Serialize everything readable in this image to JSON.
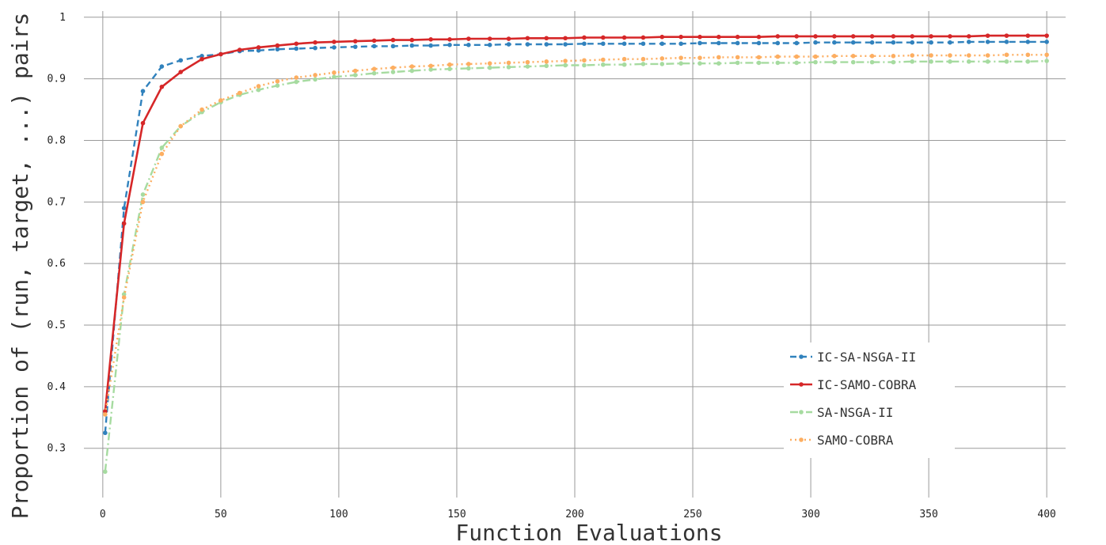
{
  "chart_data": {
    "type": "line",
    "title": "",
    "xlabel": "Function Evaluations",
    "ylabel": "Proportion of (run, target, ...) pairs",
    "xlim": [
      -8,
      408
    ],
    "ylim": [
      0.22,
      1.01
    ],
    "x_ticks": [
      0,
      50,
      100,
      150,
      200,
      250,
      300,
      350,
      400
    ],
    "y_ticks": [
      0.3,
      0.4,
      0.5,
      0.6,
      0.7,
      0.8,
      0.9,
      1
    ],
    "grid": true,
    "legend_position": "lower-right",
    "x": [
      1,
      9,
      17,
      25,
      33,
      42,
      50,
      58,
      66,
      74,
      82,
      90,
      98,
      107,
      115,
      123,
      131,
      139,
      147,
      155,
      164,
      172,
      180,
      188,
      196,
      204,
      212,
      221,
      229,
      237,
      245,
      253,
      261,
      269,
      278,
      286,
      294,
      302,
      310,
      318,
      326,
      335,
      343,
      351,
      359,
      367,
      375,
      383,
      392,
      400
    ],
    "series": [
      {
        "name": "IC-SA-NSGA-II",
        "color": "#3182bd",
        "dash": "8,5",
        "values": [
          0.325,
          0.69,
          0.88,
          0.92,
          0.93,
          0.937,
          0.94,
          0.945,
          0.946,
          0.948,
          0.949,
          0.95,
          0.951,
          0.952,
          0.953,
          0.953,
          0.954,
          0.954,
          0.955,
          0.955,
          0.955,
          0.956,
          0.956,
          0.956,
          0.956,
          0.957,
          0.957,
          0.957,
          0.957,
          0.957,
          0.957,
          0.958,
          0.958,
          0.958,
          0.958,
          0.958,
          0.958,
          0.959,
          0.959,
          0.959,
          0.959,
          0.959,
          0.959,
          0.959,
          0.959,
          0.96,
          0.96,
          0.96,
          0.96,
          0.96
        ]
      },
      {
        "name": "IC-SAMO-COBRA",
        "color": "#d62728",
        "dash": "",
        "values": [
          0.36,
          0.665,
          0.828,
          0.887,
          0.911,
          0.932,
          0.94,
          0.947,
          0.951,
          0.954,
          0.957,
          0.959,
          0.96,
          0.961,
          0.962,
          0.963,
          0.963,
          0.964,
          0.964,
          0.965,
          0.965,
          0.965,
          0.966,
          0.966,
          0.966,
          0.967,
          0.967,
          0.967,
          0.967,
          0.968,
          0.968,
          0.968,
          0.968,
          0.968,
          0.968,
          0.969,
          0.969,
          0.969,
          0.969,
          0.969,
          0.969,
          0.969,
          0.969,
          0.969,
          0.969,
          0.969,
          0.97,
          0.97,
          0.97,
          0.97
        ]
      },
      {
        "name": "SA-NSGA-II",
        "color": "#a6dba0",
        "dash": "10,4,2,4",
        "values": [
          0.262,
          0.55,
          0.712,
          0.788,
          0.823,
          0.846,
          0.862,
          0.874,
          0.882,
          0.889,
          0.895,
          0.899,
          0.903,
          0.906,
          0.909,
          0.911,
          0.913,
          0.915,
          0.916,
          0.917,
          0.918,
          0.919,
          0.92,
          0.921,
          0.922,
          0.922,
          0.923,
          0.923,
          0.924,
          0.924,
          0.925,
          0.925,
          0.925,
          0.926,
          0.926,
          0.926,
          0.926,
          0.927,
          0.927,
          0.927,
          0.927,
          0.927,
          0.928,
          0.928,
          0.928,
          0.928,
          0.928,
          0.928,
          0.928,
          0.929
        ]
      },
      {
        "name": "SAMO-COBRA",
        "color": "#fdae61",
        "dash": "2,4",
        "values": [
          0.355,
          0.545,
          0.7,
          0.778,
          0.823,
          0.85,
          0.865,
          0.877,
          0.888,
          0.896,
          0.902,
          0.906,
          0.91,
          0.913,
          0.916,
          0.918,
          0.92,
          0.921,
          0.923,
          0.924,
          0.925,
          0.926,
          0.927,
          0.928,
          0.929,
          0.93,
          0.931,
          0.932,
          0.932,
          0.933,
          0.934,
          0.934,
          0.935,
          0.935,
          0.935,
          0.936,
          0.936,
          0.936,
          0.937,
          0.937,
          0.937,
          0.937,
          0.938,
          0.938,
          0.938,
          0.938,
          0.938,
          0.939,
          0.939,
          0.939
        ]
      }
    ]
  }
}
